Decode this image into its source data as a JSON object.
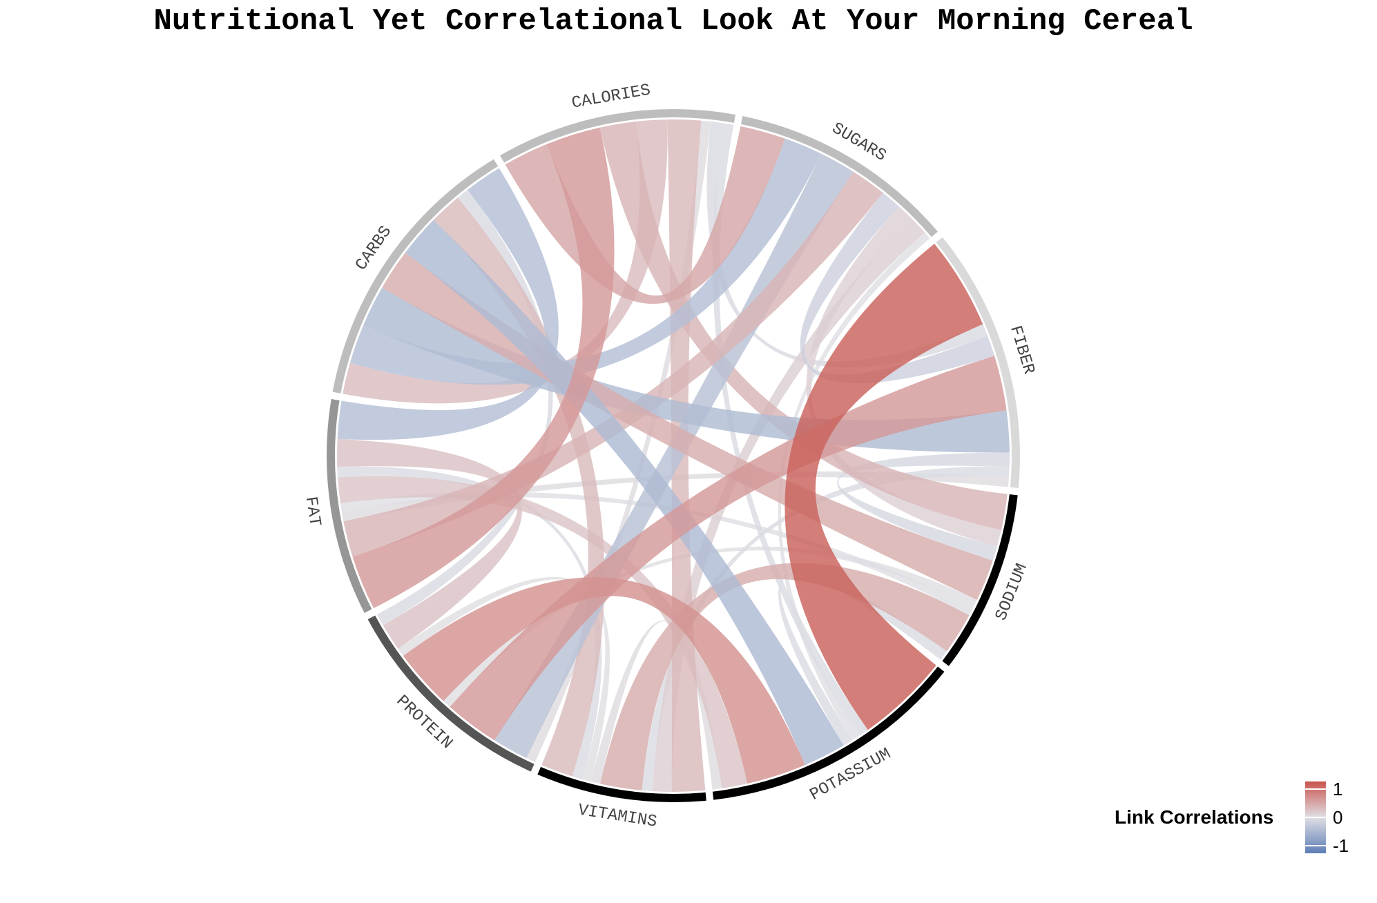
{
  "chart_data": {
    "type": "chord",
    "title": "Nutritional Yet Correlational Look At Your Morning Cereal",
    "sectors": [
      {
        "name": "CALORIES",
        "color": "#bdbdbd"
      },
      {
        "name": "SUGARS",
        "color": "#bdbdbd"
      },
      {
        "name": "FIBER",
        "color": "#d9d9d9"
      },
      {
        "name": "SODIUM",
        "color": "#000000"
      },
      {
        "name": "POTASSIUM",
        "color": "#000000"
      },
      {
        "name": "VITAMINS",
        "color": "#000000"
      },
      {
        "name": "PROTEIN",
        "color": "#555555"
      },
      {
        "name": "FAT",
        "color": "#969696"
      },
      {
        "name": "CARBS",
        "color": "#bdbdbd"
      }
    ],
    "links": [
      {
        "from": "FIBER",
        "to": "POTASSIUM",
        "correlation": 0.9
      },
      {
        "from": "CALORIES",
        "to": "SUGARS",
        "correlation": 0.4
      },
      {
        "from": "CALORIES",
        "to": "FAT",
        "correlation": 0.5
      },
      {
        "from": "CALORIES",
        "to": "SODIUM",
        "correlation": 0.3
      },
      {
        "from": "CALORIES",
        "to": "CARBS",
        "correlation": 0.25
      },
      {
        "from": "CALORIES",
        "to": "VITAMINS",
        "correlation": 0.27
      },
      {
        "from": "CALORIES",
        "to": "PROTEIN",
        "correlation": 0.02
      },
      {
        "from": "CALORIES",
        "to": "FIBER",
        "correlation": -0.05
      },
      {
        "from": "CALORIES",
        "to": "POTASSIUM",
        "correlation": -0.03
      },
      {
        "from": "SUGARS",
        "to": "CARBS",
        "correlation": -0.33
      },
      {
        "from": "SUGARS",
        "to": "PROTEIN",
        "correlation": -0.3
      },
      {
        "from": "SUGARS",
        "to": "FAT",
        "correlation": 0.3
      },
      {
        "from": "SUGARS",
        "to": "FIBER",
        "correlation": -0.14
      },
      {
        "from": "SUGARS",
        "to": "SODIUM",
        "correlation": 0.1
      },
      {
        "from": "SUGARS",
        "to": "VITAMINS",
        "correlation": 0.12
      },
      {
        "from": "SUGARS",
        "to": "POTASSIUM",
        "correlation": 0.0
      },
      {
        "from": "FIBER",
        "to": "PROTEIN",
        "correlation": 0.5
      },
      {
        "from": "FIBER",
        "to": "CARBS",
        "correlation": -0.36
      },
      {
        "from": "FIBER",
        "to": "SODIUM",
        "correlation": -0.07
      },
      {
        "from": "FIBER",
        "to": "VITAMINS",
        "correlation": -0.03
      },
      {
        "from": "FIBER",
        "to": "FAT",
        "correlation": 0.02
      },
      {
        "from": "SODIUM",
        "to": "CARBS",
        "correlation": 0.36
      },
      {
        "from": "SODIUM",
        "to": "PROTEIN",
        "correlation": 0.01
      },
      {
        "from": "SODIUM",
        "to": "FAT",
        "correlation": -0.01
      },
      {
        "from": "SODIUM",
        "to": "VITAMINS",
        "correlation": 0.36
      },
      {
        "from": "SODIUM",
        "to": "POTASSIUM",
        "correlation": -0.03
      },
      {
        "from": "POTASSIUM",
        "to": "CARBS",
        "correlation": -0.37
      },
      {
        "from": "POTASSIUM",
        "to": "PROTEIN",
        "correlation": 0.55
      },
      {
        "from": "POTASSIUM",
        "to": "FAT",
        "correlation": 0.19
      },
      {
        "from": "POTASSIUM",
        "to": "VITAMINS",
        "correlation": 0.02
      },
      {
        "from": "VITAMINS",
        "to": "PROTEIN",
        "correlation": 0.01
      },
      {
        "from": "VITAMINS",
        "to": "FAT",
        "correlation": -0.03
      },
      {
        "from": "VITAMINS",
        "to": "CARBS",
        "correlation": 0.26
      },
      {
        "from": "PROTEIN",
        "to": "FAT",
        "correlation": 0.21
      },
      {
        "from": "PROTEIN",
        "to": "CARBS",
        "correlation": -0.05
      },
      {
        "from": "FAT",
        "to": "CARBS",
        "correlation": -0.32
      }
    ],
    "legend": {
      "title": "Link Correlations",
      "placement": "bottom-right",
      "high_color": "#c9534c",
      "mid_color": "#dfdfe4",
      "low_color": "#5d7db6",
      "ticks": [
        "1",
        "0",
        "-1"
      ]
    }
  }
}
